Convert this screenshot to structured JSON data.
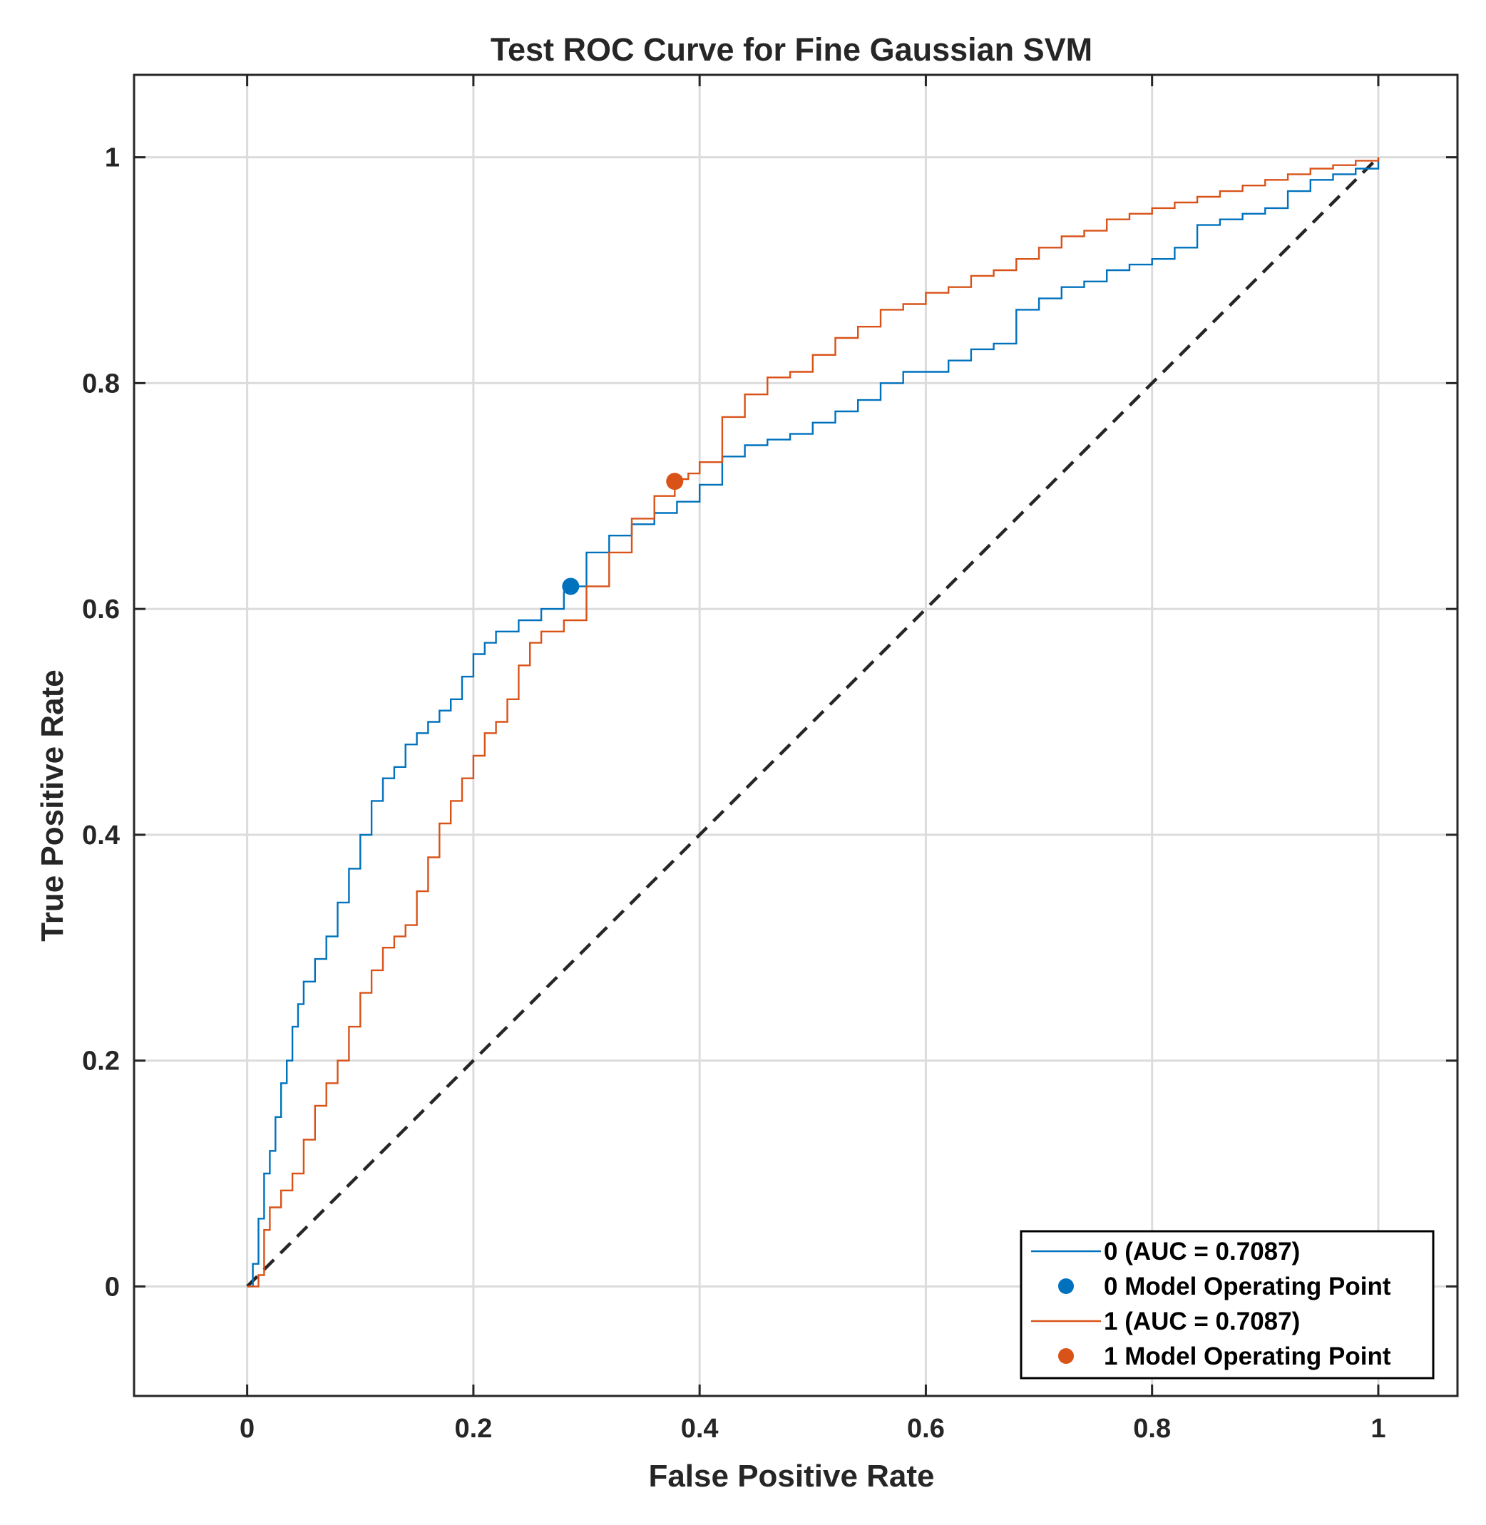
{
  "chart_data": {
    "type": "line",
    "title": "Test ROC Curve for Fine Gaussian SVM",
    "xlabel": "False Positive Rate",
    "ylabel": "True Positive Rate",
    "xlim": [
      -0.1,
      1.07
    ],
    "ylim": [
      -0.097,
      1.073
    ],
    "xticks": [
      0,
      0.2,
      0.4,
      0.6,
      0.8,
      1
    ],
    "xtick_labels": [
      "0",
      "0.2",
      "0.4",
      "0.6",
      "0.8",
      "1"
    ],
    "yticks": [
      0,
      0.2,
      0.4,
      0.6,
      0.8,
      1
    ],
    "ytick_labels": [
      "0",
      "0.2",
      "0.4",
      "0.6",
      "0.8",
      "1"
    ],
    "grid": true,
    "legend_position": "bottom-right",
    "colors": {
      "series_0": "#0072BD",
      "series_1": "#D95319",
      "diagonal": "#262626",
      "grid": "#dcdcdc",
      "axes": "#262626"
    },
    "series": [
      {
        "name": "0 (AUC = 0.7087)",
        "color": "#0072BD",
        "x": [
          0,
          0.005,
          0.01,
          0.015,
          0.02,
          0.025,
          0.03,
          0.035,
          0.04,
          0.045,
          0.05,
          0.06,
          0.07,
          0.08,
          0.09,
          0.1,
          0.11,
          0.12,
          0.13,
          0.14,
          0.15,
          0.16,
          0.17,
          0.18,
          0.19,
          0.2,
          0.21,
          0.22,
          0.24,
          0.26,
          0.28,
          0.286,
          0.3,
          0.32,
          0.34,
          0.36,
          0.38,
          0.4,
          0.42,
          0.44,
          0.46,
          0.48,
          0.5,
          0.52,
          0.54,
          0.56,
          0.58,
          0.6,
          0.62,
          0.64,
          0.66,
          0.68,
          0.7,
          0.72,
          0.74,
          0.76,
          0.78,
          0.8,
          0.82,
          0.84,
          0.86,
          0.88,
          0.9,
          0.92,
          0.94,
          0.96,
          0.98,
          1
        ],
        "y": [
          0,
          0.02,
          0.06,
          0.1,
          0.12,
          0.15,
          0.18,
          0.2,
          0.23,
          0.25,
          0.27,
          0.29,
          0.31,
          0.34,
          0.37,
          0.4,
          0.43,
          0.45,
          0.46,
          0.48,
          0.49,
          0.5,
          0.51,
          0.52,
          0.54,
          0.56,
          0.57,
          0.58,
          0.59,
          0.6,
          0.615,
          0.62,
          0.65,
          0.665,
          0.675,
          0.685,
          0.695,
          0.71,
          0.735,
          0.745,
          0.75,
          0.755,
          0.765,
          0.775,
          0.785,
          0.8,
          0.81,
          0.81,
          0.82,
          0.83,
          0.835,
          0.865,
          0.875,
          0.885,
          0.89,
          0.9,
          0.905,
          0.91,
          0.92,
          0.94,
          0.945,
          0.95,
          0.955,
          0.97,
          0.98,
          0.985,
          0.99,
          1
        ]
      },
      {
        "name": "1 (AUC = 0.7087)",
        "color": "#D95319",
        "x": [
          0,
          0.01,
          0.015,
          0.02,
          0.03,
          0.04,
          0.05,
          0.06,
          0.07,
          0.08,
          0.09,
          0.1,
          0.11,
          0.12,
          0.13,
          0.14,
          0.15,
          0.16,
          0.17,
          0.18,
          0.19,
          0.2,
          0.21,
          0.22,
          0.23,
          0.24,
          0.25,
          0.26,
          0.28,
          0.3,
          0.32,
          0.34,
          0.36,
          0.378,
          0.39,
          0.4,
          0.42,
          0.44,
          0.46,
          0.48,
          0.5,
          0.52,
          0.54,
          0.56,
          0.58,
          0.6,
          0.62,
          0.64,
          0.66,
          0.68,
          0.7,
          0.72,
          0.74,
          0.76,
          0.78,
          0.8,
          0.82,
          0.84,
          0.86,
          0.88,
          0.9,
          0.92,
          0.94,
          0.96,
          0.98,
          1
        ],
        "y": [
          0,
          0.01,
          0.05,
          0.07,
          0.085,
          0.1,
          0.13,
          0.16,
          0.18,
          0.2,
          0.23,
          0.26,
          0.28,
          0.3,
          0.31,
          0.32,
          0.35,
          0.38,
          0.41,
          0.43,
          0.45,
          0.47,
          0.49,
          0.5,
          0.52,
          0.55,
          0.57,
          0.58,
          0.59,
          0.62,
          0.65,
          0.68,
          0.7,
          0.715,
          0.72,
          0.73,
          0.77,
          0.79,
          0.805,
          0.81,
          0.825,
          0.84,
          0.85,
          0.865,
          0.87,
          0.88,
          0.885,
          0.895,
          0.9,
          0.91,
          0.92,
          0.93,
          0.935,
          0.945,
          0.95,
          0.955,
          0.96,
          0.965,
          0.97,
          0.975,
          0.98,
          0.985,
          0.99,
          0.993,
          0.997,
          1
        ]
      },
      {
        "name": "chance",
        "color": "#262626",
        "style": "dashed",
        "x": [
          0,
          1
        ],
        "y": [
          0,
          1
        ]
      }
    ],
    "operating_points": [
      {
        "name": "0 Model Operating Point",
        "x": 0.286,
        "y": 0.62,
        "color": "#0072BD"
      },
      {
        "name": "1 Model Operating Point",
        "x": 0.378,
        "y": 0.713,
        "color": "#D95319"
      }
    ],
    "legend": [
      {
        "label": "0 (AUC = 0.7087)",
        "marker": "line",
        "color": "#0072BD"
      },
      {
        "label": "0 Model Operating Point",
        "marker": "dot",
        "color": "#0072BD"
      },
      {
        "label": "1 (AUC = 0.7087)",
        "marker": "line",
        "color": "#D95319"
      },
      {
        "label": "1 Model Operating Point",
        "marker": "dot",
        "color": "#D95319"
      }
    ]
  }
}
